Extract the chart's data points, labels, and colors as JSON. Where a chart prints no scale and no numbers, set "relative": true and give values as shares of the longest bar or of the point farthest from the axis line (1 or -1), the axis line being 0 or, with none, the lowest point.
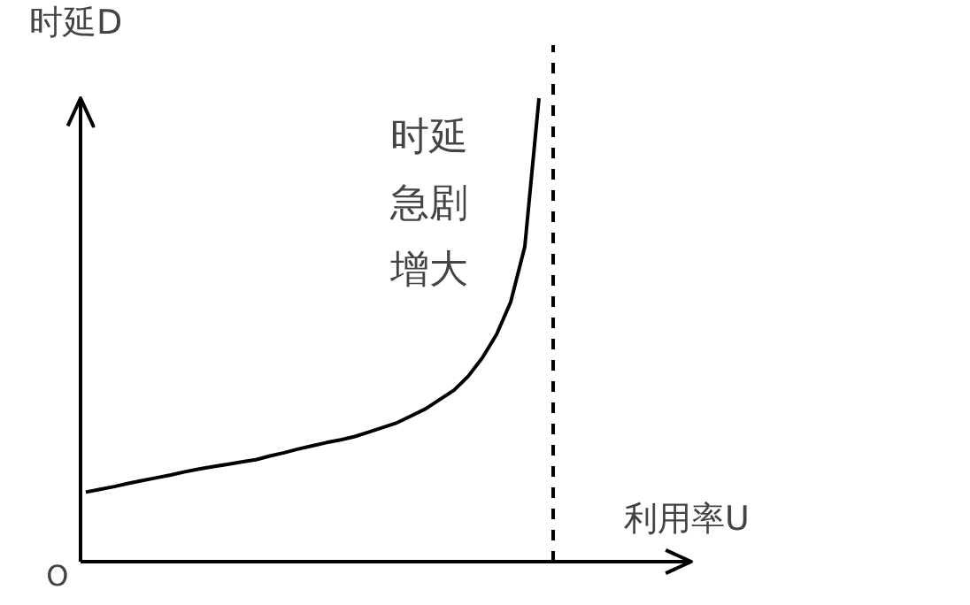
{
  "chart_data": {
    "type": "line",
    "relative": true,
    "xlabel": "利用率U",
    "ylabel": "时延D",
    "categories": [
      null,
      null,
      null,
      null,
      null,
      null,
      null,
      null,
      null,
      null,
      null,
      null,
      null,
      null,
      null,
      null,
      null,
      null,
      null,
      null,
      null,
      null,
      null,
      null,
      null,
      null,
      null,
      null,
      null,
      null,
      null,
      null,
      null,
      null,
      null,
      null,
      null,
      null,
      null,
      null,
      null,
      null,
      null
    ],
    "series": [
      {
        "color": "#000000",
        "values": [
          0.15,
          0.156,
          0.162,
          0.169,
          0.175,
          0.181,
          0.187,
          0.194,
          0.2,
          0.205,
          0.21,
          0.215,
          0.22,
          0.228,
          0.235,
          0.243,
          0.25,
          0.257,
          0.263,
          0.27,
          0.28,
          0.29,
          0.3,
          0.315,
          0.33,
          0.35,
          0.37,
          0.4,
          0.44,
          0.49,
          0.56,
          0.68,
          1.0,
          null,
          null,
          null,
          null,
          null,
          null,
          null,
          null,
          null,
          null
        ]
      }
    ],
    "line_style": "solid",
    "annotations": [
      "时延急剧增大",
      "O"
    ]
  }
}
